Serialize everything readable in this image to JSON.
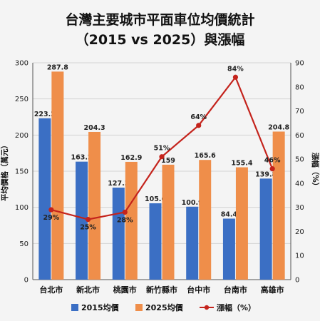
{
  "chart_data": {
    "type": "bar",
    "title_line1": "台灣主要城市平面車位均價統計",
    "title_line2": "（2015 vs 2025）與漲幅",
    "ylabel": "平均價格（萬元）",
    "y2label": "漲幅（%）",
    "ylim": [
      0,
      300
    ],
    "y2lim": [
      0,
      90
    ],
    "yticks": [
      "0",
      "50",
      "100",
      "150",
      "200",
      "250",
      "300"
    ],
    "y2ticks": [
      "0",
      "10",
      "20",
      "30",
      "40",
      "50",
      "60",
      "70",
      "80",
      "90"
    ],
    "grid": true,
    "legend_position": "bottom",
    "categories": [
      "台北市",
      "新北市",
      "桃園市",
      "新竹縣市",
      "台中市",
      "台南市",
      "高雄市"
    ],
    "series": [
      {
        "name": "2015均價",
        "type": "bar",
        "color": "#3b6fc4",
        "values": [
          223.2,
          163.2,
          127.3,
          105.6,
          100.9,
          84.4,
          139.8
        ],
        "labels": [
          "223.2",
          "163.2",
          "127.3",
          "105.6",
          "100.9",
          "84.4",
          "139.8"
        ]
      },
      {
        "name": "2025均價",
        "type": "bar",
        "color": "#ef8e4a",
        "values": [
          287.8,
          204.3,
          162.9,
          159,
          165.6,
          155.4,
          204.8
        ],
        "labels": [
          "287.8",
          "204.3",
          "162.9",
          "159",
          "165.6",
          "155.4",
          "204.8"
        ]
      },
      {
        "name": "漲幅（%）",
        "type": "line",
        "axis": "right",
        "color": "#c4231c",
        "values": [
          29,
          25,
          28,
          51,
          64,
          84,
          46
        ],
        "labels": [
          "29%",
          "25%",
          "28%",
          "51%",
          "64%",
          "84%",
          "46%"
        ]
      }
    ]
  }
}
